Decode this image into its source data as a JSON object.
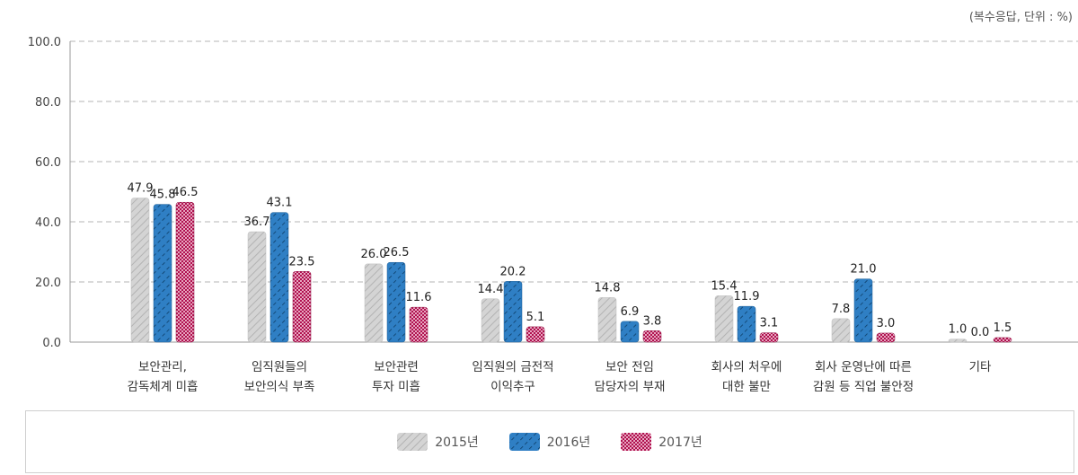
{
  "unit_note": "(복수응답, 단위 : %)",
  "colors": {
    "s2015": "#c9c9c9",
    "s2016": "#2f7fc4",
    "s2017": "#c2185b",
    "grid": "#b5b5b5",
    "axis": "#9a9a9a"
  },
  "chart_data": {
    "type": "bar",
    "categories": [
      [
        "보안관리,",
        "감독체계 미흡"
      ],
      [
        "임직원들의",
        "보안의식 부족"
      ],
      [
        "보안관련",
        "투자 미흡"
      ],
      [
        "임직원의 금전적",
        "이익추구"
      ],
      [
        "보안 전임",
        "담당자의 부재"
      ],
      [
        "회사의 처우에",
        "대한 불만"
      ],
      [
        "회사 운영난에 따른",
        "감원 등 직업 불안정"
      ],
      [
        "기타"
      ]
    ],
    "series": [
      {
        "name": "2015년",
        "values": [
          47.9,
          36.7,
          26.0,
          14.4,
          14.8,
          15.4,
          7.8,
          1.0
        ]
      },
      {
        "name": "2016년",
        "values": [
          45.8,
          43.1,
          26.5,
          20.2,
          6.9,
          11.9,
          21.0,
          0.0
        ]
      },
      {
        "name": "2017년",
        "values": [
          46.5,
          23.5,
          11.6,
          5.1,
          3.8,
          3.1,
          3.0,
          1.5
        ]
      }
    ],
    "ylim": [
      0,
      100
    ],
    "yticks": [
      "0.0",
      "20.0",
      "40.0",
      "60.0",
      "80.0",
      "100.0"
    ],
    "grid": true,
    "legend": "bottom"
  }
}
